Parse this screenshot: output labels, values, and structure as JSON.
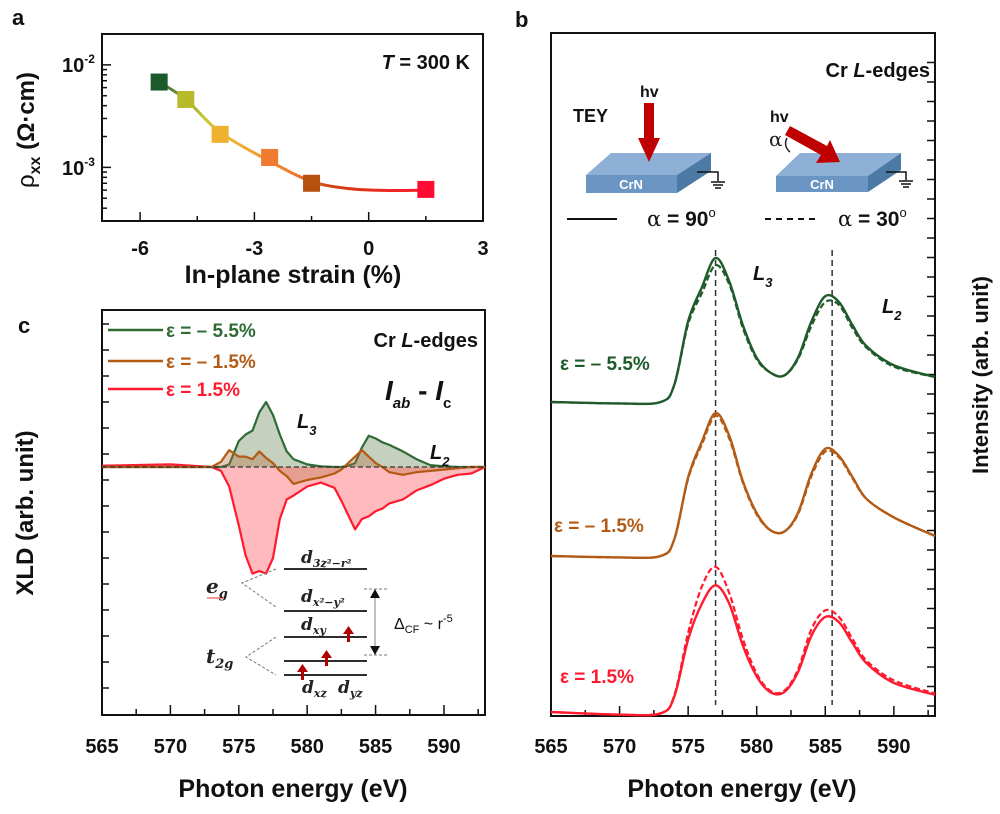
{
  "figure": {
    "panel_labels": [
      "a",
      "b",
      "c"
    ]
  },
  "chart_data": [
    {
      "panel": "a",
      "type": "scatter",
      "title": "",
      "annotation": "T = 300 K",
      "annotation_parts": {
        "var": "T",
        "rest": " = 300 K"
      },
      "xlabel": "In-plane strain (%)",
      "ylabel": "ρxx (Ω·cm)",
      "ylabel_parts": {
        "rho": "ρ",
        "sub": "xx",
        "unit": " (Ω·cm)"
      },
      "xlim": [
        -7,
        3
      ],
      "ylim": [
        0.0003,
        0.02
      ],
      "yscale": "log",
      "xticks": [
        -6,
        -3,
        0,
        3
      ],
      "xtick_labels": [
        "-6",
        "-3",
        "0",
        "3"
      ],
      "yticks": [
        0.001,
        0.01
      ],
      "ytick_labels": [
        {
          "base": "10",
          "exp": "-3"
        },
        {
          "base": "10",
          "exp": "-2"
        }
      ],
      "points": [
        {
          "x": -5.5,
          "y": 0.0068,
          "color": "#1c5a2c"
        },
        {
          "x": -4.8,
          "y": 0.0046,
          "color": "#b9b92c"
        },
        {
          "x": -3.9,
          "y": 0.0021,
          "color": "#f0b030"
        },
        {
          "x": -2.6,
          "y": 0.00125,
          "color": "#f07a30"
        },
        {
          "x": -1.5,
          "y": 0.0007,
          "color": "#b5500f"
        },
        {
          "x": 1.5,
          "y": 0.00061,
          "color": "#ff0a33"
        }
      ],
      "fit_curve": {
        "x": [
          -5.5,
          -4.8,
          -3.9,
          -2.6,
          -1.5,
          -0.5,
          0.5,
          1.5
        ],
        "y": [
          0.0068,
          0.0046,
          0.0022,
          0.00115,
          0.00073,
          0.00062,
          0.000595,
          0.0006
        ]
      },
      "grid": false
    },
    {
      "panel": "b",
      "type": "line",
      "title": "Cr L-edges",
      "title_parts": {
        "pre": "Cr ",
        "ital": "L",
        "post": "-edges"
      },
      "xlabel": "Photon energy (eV)",
      "ylabel": "Intensity (arb. unit)",
      "xlim": [
        565,
        593
      ],
      "xticks": [
        565,
        570,
        575,
        580,
        585,
        590
      ],
      "xtick_labels": [
        "565",
        "570",
        "575",
        "580",
        "585",
        "590"
      ],
      "ylim": [
        0,
        1
      ],
      "grid": false,
      "reference_lines_x": [
        577.0,
        585.5
      ],
      "peak_labels": [
        {
          "text": "L",
          "sub": "3"
        },
        {
          "text": "L",
          "sub": "2"
        }
      ],
      "legend": [
        {
          "style": "solid",
          "label": "α = 90°",
          "parts": {
            "alpha": "α",
            "rest": " = 90",
            "deg": "o"
          }
        },
        {
          "style": "dashed",
          "label": "α = 30°",
          "parts": {
            "alpha": "α",
            "rest": " = 30",
            "deg": "o"
          }
        }
      ],
      "inset": {
        "method": "TEY",
        "photon": "hν",
        "photon_text": "hv",
        "sample": "CrN",
        "angle_symbol": "α"
      },
      "x": [
        565,
        570,
        573,
        574,
        575,
        576,
        577,
        578,
        579,
        580,
        581,
        582,
        583,
        584,
        585,
        586,
        587,
        588,
        590,
        593
      ],
      "series": [
        {
          "name": "ε = – 5.5%",
          "color": "#1f5a2a",
          "offset": 2,
          "solid": [
            0.0,
            -0.01,
            0.0,
            0.12,
            0.55,
            0.78,
            0.98,
            0.82,
            0.52,
            0.3,
            0.2,
            0.18,
            0.3,
            0.55,
            0.72,
            0.68,
            0.52,
            0.38,
            0.25,
            0.17
          ],
          "dashed": [
            0.0,
            -0.01,
            0.0,
            0.12,
            0.53,
            0.74,
            0.93,
            0.8,
            0.5,
            0.29,
            0.2,
            0.18,
            0.29,
            0.52,
            0.68,
            0.66,
            0.5,
            0.37,
            0.24,
            0.17
          ]
        },
        {
          "name": "ε = – 1.5%",
          "color": "#b35a14",
          "offset": 1,
          "solid": [
            0.0,
            -0.01,
            0.0,
            0.12,
            0.55,
            0.8,
            1.0,
            0.84,
            0.52,
            0.3,
            0.18,
            0.17,
            0.3,
            0.58,
            0.75,
            0.7,
            0.55,
            0.4,
            0.27,
            0.14
          ],
          "dashed": [
            0.0,
            -0.01,
            0.0,
            0.12,
            0.54,
            0.78,
            0.98,
            0.82,
            0.51,
            0.29,
            0.18,
            0.17,
            0.29,
            0.56,
            0.73,
            0.69,
            0.54,
            0.4,
            0.27,
            0.14
          ]
        },
        {
          "name": "ε = 1.5%",
          "color": "#ff1a2e",
          "offset": 0,
          "solid": [
            0.0,
            -0.02,
            -0.01,
            0.12,
            0.55,
            0.82,
            0.96,
            0.82,
            0.5,
            0.27,
            0.15,
            0.15,
            0.3,
            0.58,
            0.72,
            0.68,
            0.52,
            0.37,
            0.22,
            0.13
          ],
          "dashed": [
            0.0,
            -0.02,
            -0.01,
            0.13,
            0.6,
            0.95,
            1.1,
            0.9,
            0.55,
            0.29,
            0.16,
            0.16,
            0.32,
            0.63,
            0.77,
            0.72,
            0.55,
            0.39,
            0.24,
            0.14
          ]
        }
      ]
    },
    {
      "panel": "c",
      "type": "area",
      "title": "Cr L-edges",
      "title_parts": {
        "pre": "Cr ",
        "ital": "L",
        "post": "-edges"
      },
      "subtitle": "Iab - Ic",
      "subtitle_parts": {
        "i1": "I",
        "s1": "ab",
        "mid": " - ",
        "i2": "I",
        "s2": "c"
      },
      "xlabel": "Photon energy (eV)",
      "ylabel": "XLD (arb. unit)",
      "xlim": [
        565,
        593
      ],
      "xticks": [
        565,
        570,
        575,
        580,
        585,
        590
      ],
      "xtick_labels": [
        "565",
        "570",
        "575",
        "580",
        "585",
        "590"
      ],
      "ylim": [
        -9.5,
        6
      ],
      "grid": false,
      "baseline": 0,
      "peak_labels": [
        {
          "text": "L",
          "sub": "3"
        },
        {
          "text": "L",
          "sub": "2"
        }
      ],
      "legend_position": "top-left",
      "x": [
        565,
        570,
        573,
        573.7,
        574.3,
        575,
        575.5,
        576,
        576.5,
        577,
        577.5,
        578,
        578.5,
        579,
        580,
        581,
        582,
        582.5,
        583,
        583.5,
        584,
        584.5,
        585,
        585.5,
        586,
        587,
        588,
        589,
        590,
        591,
        592,
        593
      ],
      "series": [
        {
          "name": "ε = – 5.5%",
          "color": "#2e6b35",
          "fill": "rgba(126,150,112,0.45)",
          "values": [
            0,
            0,
            0,
            0,
            0.2,
            2.0,
            2.5,
            2.8,
            4.2,
            5.0,
            4.0,
            2.5,
            1.2,
            0.6,
            0.2,
            0.05,
            0,
            0,
            0.1,
            0.3,
            1.5,
            2.4,
            2.2,
            1.9,
            1.7,
            1.2,
            0.6,
            0.15,
            0.05,
            0,
            0,
            0
          ]
        },
        {
          "name": "ε = – 1.5%",
          "color": "#b35a14",
          "fill": "rgba(180,110,60,0.35)",
          "values": [
            0,
            0,
            0,
            0.4,
            1.3,
            0.8,
            0.8,
            0.6,
            1.2,
            0.7,
            0.3,
            -0.3,
            -0.7,
            -1.3,
            -1.0,
            -0.8,
            -0.5,
            -0.2,
            0.3,
            0.8,
            1.3,
            0.8,
            0.3,
            0,
            -0.4,
            -0.6,
            -0.4,
            -0.3,
            -0.2,
            -0.1,
            0,
            0
          ]
        },
        {
          "name": "ε = 1.5%",
          "color": "#ff1a2e",
          "fill": "rgba(255,130,135,0.55)",
          "values": [
            0.1,
            0.2,
            0,
            -0.3,
            -1.5,
            -4.5,
            -6.8,
            -8.2,
            -8.0,
            -8.2,
            -7.0,
            -4.0,
            -2.5,
            -2.2,
            -1.5,
            -1.2,
            -1.6,
            -2.6,
            -3.7,
            -4.8,
            -4.0,
            -3.8,
            -3.4,
            -3.2,
            -2.8,
            -2.5,
            -1.8,
            -1.4,
            -0.9,
            -0.6,
            -0.5,
            0
          ]
        }
      ],
      "inset_diagram": {
        "groups": [
          {
            "label": "e",
            "sub": "g"
          },
          {
            "label": "t",
            "sub": "2g"
          }
        ],
        "levels": [
          {
            "main": "d",
            "sub": "3z²−r²"
          },
          {
            "main": "d",
            "sub": "x²−y²"
          },
          {
            "main": "d",
            "sub": "xy"
          },
          {
            "main": "d",
            "sub": "yz"
          },
          {
            "main": "d",
            "sub": "xz"
          }
        ],
        "electrons": 3,
        "splitting_label": {
          "delta": "Δ",
          "sub": "CF",
          "rest": " ~ r",
          "exp": "-5"
        }
      }
    }
  ]
}
